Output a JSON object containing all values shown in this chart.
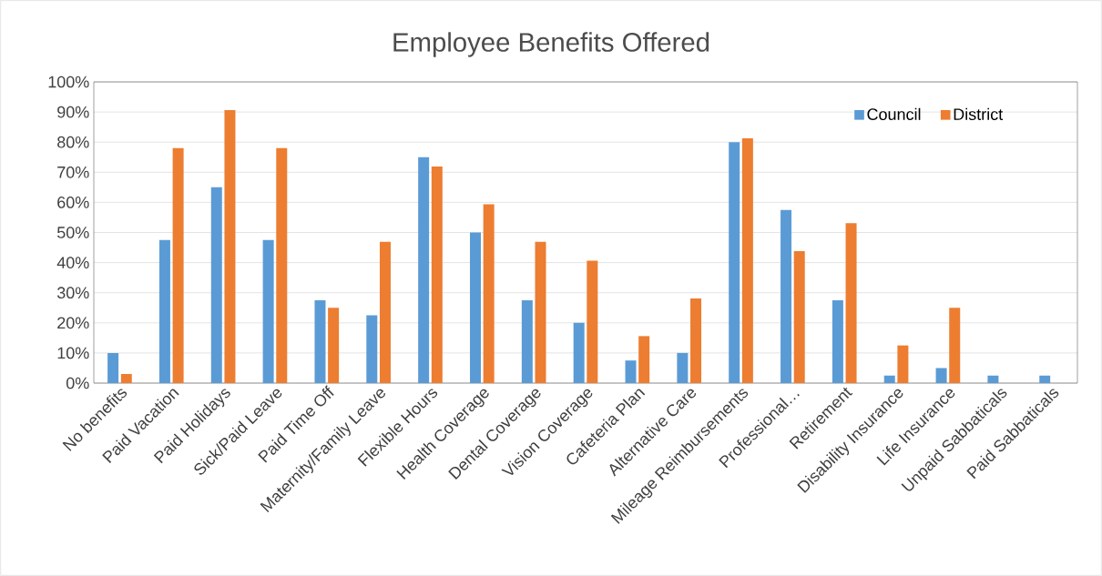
{
  "chart_data": {
    "type": "bar",
    "title": "Employee Benefits Offered",
    "categories": [
      "No benefits",
      "Paid Vacation",
      "Paid Holidays",
      "Sick/Paid Leave",
      "Paid Time Off",
      "Maternity/Family Leave",
      "Flexible Hours",
      "Health Coverage",
      "Dental Coverage",
      "Vision Coverage",
      "Cafeteria Plan",
      "Alternative Care",
      "Mileage Reimbursements",
      "Professional…",
      "Retirement",
      "Disability Insurance",
      "Life Insurance",
      "Unpaid Sabbaticals",
      "Paid Sabbaticals"
    ],
    "series": [
      {
        "name": "Council",
        "color": "#5b9bd5",
        "values": [
          10,
          47.5,
          65,
          47.5,
          27.5,
          22.5,
          75,
          50,
          27.5,
          20,
          7.5,
          10,
          80,
          57.5,
          27.5,
          2.5,
          5,
          2.5,
          2.5
        ]
      },
      {
        "name": "District",
        "color": "#ed7d31",
        "values": [
          3,
          78,
          90.6,
          78,
          25,
          46.9,
          71.9,
          59.4,
          46.9,
          40.6,
          15.6,
          28.1,
          81.3,
          43.8,
          53.1,
          12.5,
          25,
          0,
          0
        ]
      }
    ],
    "ylim": [
      0,
      100
    ],
    "yticks": [
      {
        "value": 0,
        "label": "0%"
      },
      {
        "value": 10,
        "label": "10%"
      },
      {
        "value": 20,
        "label": "20%"
      },
      {
        "value": 30,
        "label": "30%"
      },
      {
        "value": 40,
        "label": "40%"
      },
      {
        "value": 50,
        "label": "50%"
      },
      {
        "value": 60,
        "label": "60%"
      },
      {
        "value": 70,
        "label": "70%"
      },
      {
        "value": 80,
        "label": "80%"
      },
      {
        "value": 90,
        "label": "90%"
      },
      {
        "value": 100,
        "label": "100%"
      }
    ],
    "grid": "y",
    "legend": "top right"
  }
}
